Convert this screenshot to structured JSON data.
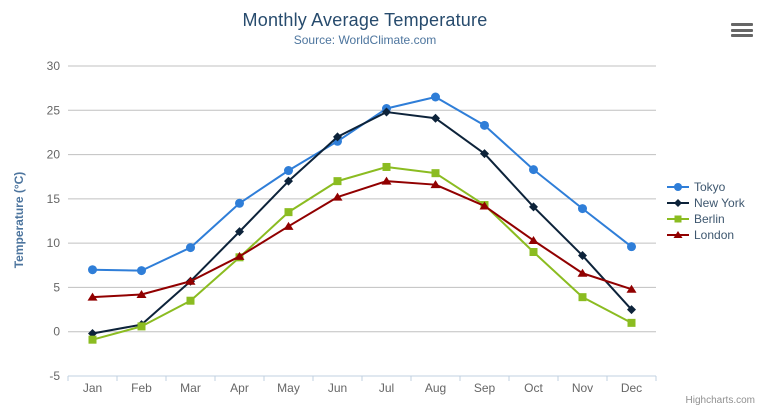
{
  "chart": {
    "title": "Monthly Average Temperature",
    "subtitle": "Source: WorldClimate.com",
    "credits": "Highcharts.com",
    "context_menu_icon": "hamburger-menu-icon",
    "background_color": "#ffffff",
    "grid_line_color": "#C0C0C0",
    "axis_line_color": "#C0D0E0",
    "axis_label_color": "#666666",
    "legend_text_color": "#3E576F",
    "title_color": "#274b6d",
    "subtitle_color": "#4d759e"
  },
  "chart_data": {
    "type": "line",
    "title": "Monthly Average Temperature",
    "subtitle": "Source: WorldClimate.com",
    "xlabel": "",
    "ylabel": "Temperature (°C)",
    "categories": [
      "Jan",
      "Feb",
      "Mar",
      "Apr",
      "May",
      "Jun",
      "Jul",
      "Aug",
      "Sep",
      "Oct",
      "Nov",
      "Dec"
    ],
    "ylim": [
      -5,
      30
    ],
    "ytick_interval": 5,
    "grid": true,
    "legend_position": "right",
    "series": [
      {
        "name": "Tokyo",
        "color": "#2f7ed8",
        "marker": "circle",
        "values": [
          7.0,
          6.9,
          9.5,
          14.5,
          18.2,
          21.5,
          25.2,
          26.5,
          23.3,
          18.3,
          13.9,
          9.6
        ]
      },
      {
        "name": "New York",
        "color": "#0d233a",
        "marker": "diamond",
        "values": [
          -0.2,
          0.8,
          5.7,
          11.3,
          17.0,
          22.0,
          24.8,
          24.1,
          20.1,
          14.1,
          8.6,
          2.5
        ]
      },
      {
        "name": "Berlin",
        "color": "#8bbc21",
        "marker": "square",
        "values": [
          -0.9,
          0.6,
          3.5,
          8.4,
          13.5,
          17.0,
          18.6,
          17.9,
          14.3,
          9.0,
          3.9,
          1.0
        ]
      },
      {
        "name": "London",
        "color": "#910000",
        "marker": "triangle",
        "values": [
          3.9,
          4.2,
          5.7,
          8.5,
          11.9,
          15.2,
          17.0,
          16.6,
          14.2,
          10.3,
          6.6,
          4.8
        ]
      }
    ]
  }
}
